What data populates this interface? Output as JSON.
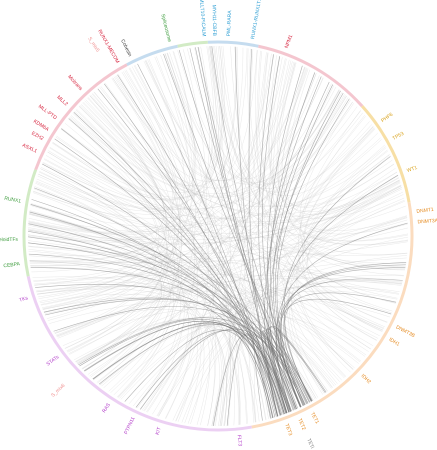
{
  "nodes": [
    {
      "label": "NPM1",
      "angle": 20,
      "color": "#d61f3a",
      "arc_color": "#f4c6cf"
    },
    {
      "label": "PHF6",
      "angle": 55,
      "color": "#d9a21b",
      "arc_color": "#f7dfa5"
    },
    {
      "label": "TP53",
      "angle": 61,
      "color": "#d9a21b",
      "arc_color": "#f7dfa5"
    },
    {
      "label": "WT1",
      "angle": 71,
      "color": "#d9a21b",
      "arc_color": "#f7dfa5"
    },
    {
      "label": "DNMT1",
      "angle": 83,
      "color": "#e58a1f",
      "arc_color": "#fbdcbf"
    },
    {
      "label": "DNMT3A",
      "angle": 86,
      "color": "#e58a1f",
      "arc_color": "#fbdcbf"
    },
    {
      "label": "DNMT3B",
      "angle": 117,
      "color": "#e58a1f",
      "arc_color": "#fbdcbf"
    },
    {
      "label": "IDH1",
      "angle": 121,
      "color": "#e58a1f",
      "arc_color": "#fbdcbf"
    },
    {
      "label": "IDH2",
      "angle": 134,
      "color": "#e58a1f",
      "arc_color": "#fbdcbf"
    },
    {
      "label": "TET1",
      "angle": 152,
      "color": "#e58a1f",
      "arc_color": "#fbdcbf"
    },
    {
      "label": "TET2",
      "angle": 156,
      "color": "#e58a1f",
      "arc_color": "#fbdcbf"
    },
    {
      "label": "TET3",
      "angle": 160,
      "color": "#e58a1f",
      "arc_color": "#fbdcbf"
    },
    {
      "label": "TETi",
      "angle": 156,
      "color": "#7f7f7f",
      "arc_color": "#fbdcbf"
    },
    {
      "label": "FLT3",
      "angle": 174,
      "color": "#b23cc9",
      "arc_color": "#ecd0f3"
    },
    {
      "label": "KIT",
      "angle": 197,
      "color": "#b23cc9",
      "arc_color": "#ecd0f3"
    },
    {
      "label": "PTPN11",
      "angle": 205,
      "color": "#b23cc9",
      "arc_color": "#ecd0f3"
    },
    {
      "label": "RAS",
      "angle": 213,
      "color": "#b23cc9",
      "arc_color": "#ecd0f3"
    },
    {
      "label": "S_mix6",
      "angle": 226,
      "color": "#f08f8f",
      "arc_color": "#ecd0f3"
    },
    {
      "label": "STATs",
      "angle": 233,
      "color": "#b23cc9",
      "arc_color": "#ecd0f3"
    },
    {
      "label": "TKs",
      "angle": 252,
      "color": "#b23cc9",
      "arc_color": "#ecd0f3"
    },
    {
      "label": "CEBPA",
      "angle": 262,
      "color": "#3b9b3b",
      "arc_color": "#d2ebc5"
    },
    {
      "label": "MyeloidTFs",
      "angle": 269,
      "color": "#3b9b3b",
      "arc_color": "#d2ebc5"
    },
    {
      "label": "RUNX1",
      "angle": 280,
      "color": "#3b9b3b",
      "arc_color": "#d2ebc5"
    },
    {
      "label": "ASXL1",
      "angle": 295,
      "color": "#d61f3a",
      "arc_color": "#f4c6cf"
    },
    {
      "label": "EZH2",
      "angle": 299,
      "color": "#d61f3a",
      "arc_color": "#f4c6cf"
    },
    {
      "label": "KDM6A",
      "angle": 302,
      "color": "#d61f3a",
      "arc_color": "#f4c6cf"
    },
    {
      "label": "MLL-PTD",
      "angle": 306,
      "color": "#d61f3a",
      "arc_color": "#f4c6cf"
    },
    {
      "label": "MLL2",
      "angle": 311,
      "color": "#d61f3a",
      "arc_color": "#f4c6cf"
    },
    {
      "label": "Mcitrans",
      "angle": 317,
      "color": "#d61f3a",
      "arc_color": "#f4c6cf"
    },
    {
      "label": "RUNX1-MECOM",
      "angle": 330,
      "color": "#d61f3a",
      "arc_color": "#f4c6cf"
    },
    {
      "label": "S_mix5",
      "angle": 327,
      "color": "#f08f8f",
      "arc_color": "#f4c6cf"
    },
    {
      "label": "Cohesin",
      "angle": 334,
      "color": "#3a3a3a",
      "arc_color": "#c5dcef"
    },
    {
      "label": "Spliceosome",
      "angle": 346,
      "color": "#3b9b3b",
      "arc_color": "#d2ebc5"
    },
    {
      "label": "MLLT10-PICALM",
      "angle": 356,
      "color": "#2f9fd4",
      "arc_color": "#c5dcef"
    },
    {
      "label": "MYH11-CBFB",
      "angle": 359,
      "color": "#2f9fd4",
      "arc_color": "#c5dcef"
    },
    {
      "label": "PML-RARA",
      "angle": 3,
      "color": "#2f9fd4",
      "arc_color": "#c5dcef"
    },
    {
      "label": "RUNX1-RUNX1T1",
      "angle": 10,
      "color": "#2f9fd4",
      "arc_color": "#c5dcef"
    }
  ]
}
